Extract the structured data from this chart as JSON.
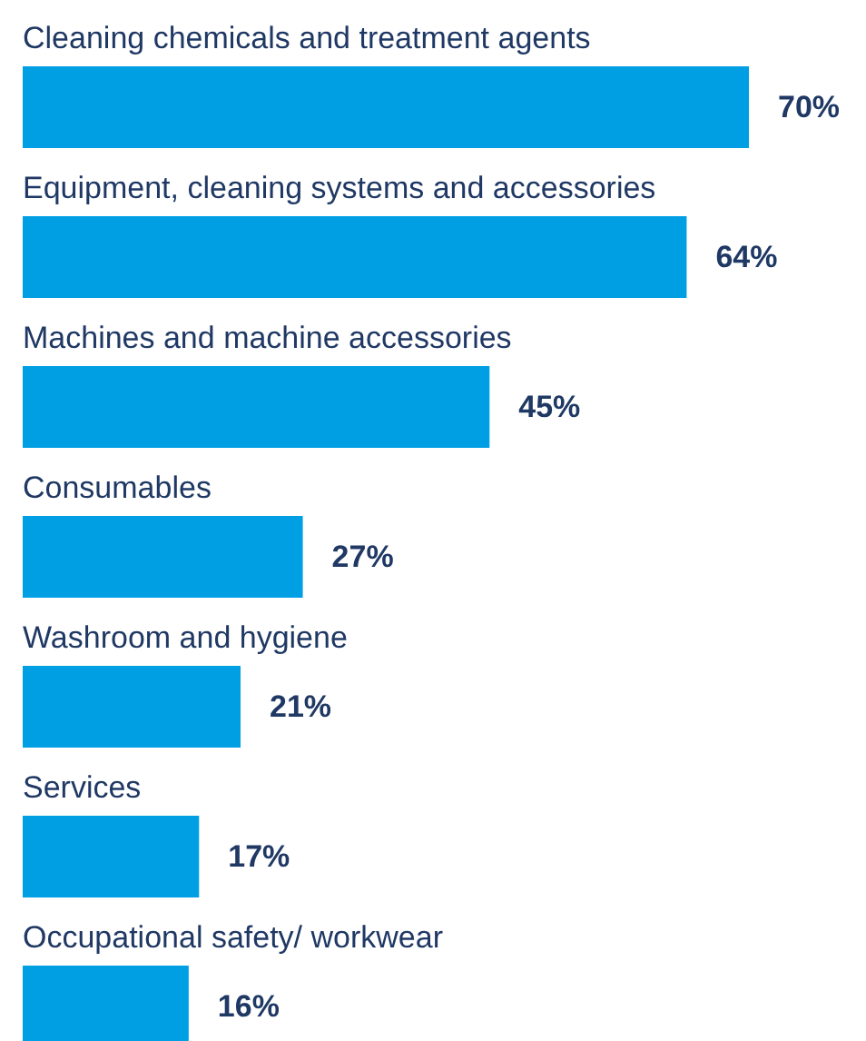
{
  "chart_data": {
    "type": "bar",
    "orientation": "horizontal",
    "categories": [
      "Cleaning chemicals and treatment agents",
      "Equipment, cleaning systems and accessories",
      "Machines and machine accessories",
      "Consumables",
      "Washroom and hygiene",
      "Services",
      "Occupational safety/ workwear"
    ],
    "values": [
      70,
      64,
      45,
      27,
      21,
      17,
      16
    ],
    "value_labels": [
      "70%",
      "64%",
      "45%",
      "27%",
      "21%",
      "17%",
      "16%"
    ],
    "color": "#009fe3",
    "grid": false,
    "tick_labels": false
  }
}
